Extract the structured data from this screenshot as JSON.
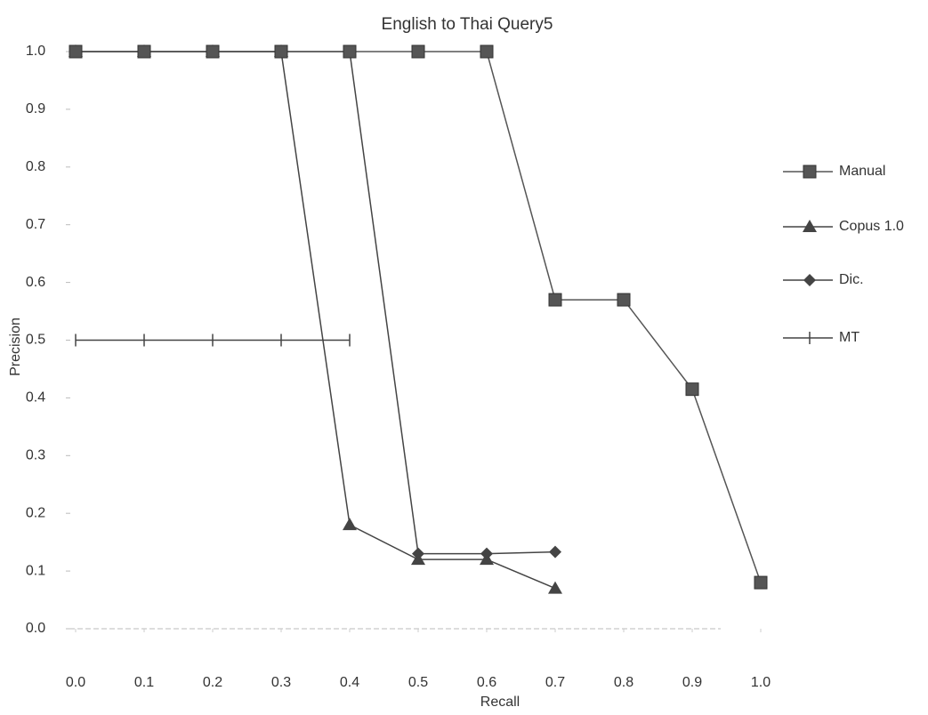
{
  "chart_data": {
    "type": "line",
    "title": "English to Thai Query5",
    "x_label": "Recall",
    "y_label": "Precision",
    "x": [
      0,
      0.1,
      0.2,
      0.3,
      0.4,
      0.5,
      0.6,
      0.7,
      0.8,
      0.9,
      1
    ],
    "series": [
      {
        "name": "Manual",
        "color": "#555555",
        "marker": "square",
        "values": [
          1,
          1,
          1,
          1,
          1,
          1,
          1,
          0.57,
          0.57,
          0.415,
          0.08
        ]
      },
      {
        "name": "Copus 1.0",
        "color": "#444444",
        "marker": "triangle",
        "values": [
          1,
          1,
          1,
          1,
          0.18,
          0.12,
          0.12,
          0.07,
          null,
          null,
          null
        ]
      },
      {
        "name": "Dic.",
        "color": "#444444",
        "marker": "diamond",
        "values": [
          1,
          1,
          1,
          1,
          1,
          0.13,
          0.13,
          0.133,
          null,
          null,
          null
        ]
      },
      {
        "name": "MT",
        "color": "#444444",
        "marker": "plus",
        "values": [
          0.5,
          0.5,
          0.5,
          0.5,
          0.5,
          null,
          null,
          null,
          null,
          null,
          null
        ]
      }
    ],
    "xlim": [
      0,
      1
    ],
    "ylim": [
      0,
      1
    ],
    "xticks": [
      {
        "value": 0,
        "label": "0.0"
      },
      0.1,
      0.2,
      0.3,
      0.4,
      0.5,
      0.6,
      0.7,
      0.8,
      0.9,
      {
        "value": 1,
        "label": "1.0"
      }
    ],
    "yticks": [
      {
        "value": 0,
        "label": "0.0"
      },
      0.1,
      0.2,
      0.3,
      0.4,
      0.5,
      0.6,
      0.7,
      0.8,
      0.9,
      {
        "value": 1,
        "label": "1.0"
      }
    ],
    "grid": false,
    "legend": "right"
  }
}
